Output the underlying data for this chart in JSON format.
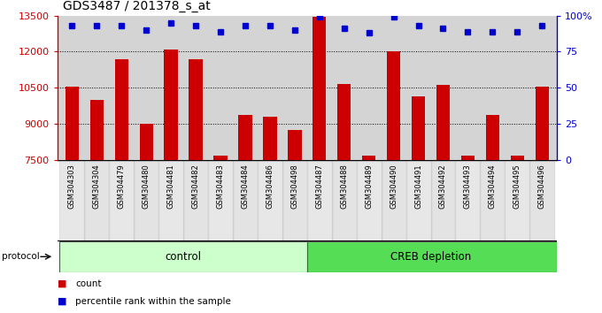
{
  "title": "GDS3487 / 201378_s_at",
  "samples": [
    "GSM304303",
    "GSM304304",
    "GSM304479",
    "GSM304480",
    "GSM304481",
    "GSM304482",
    "GSM304483",
    "GSM304484",
    "GSM304486",
    "GSM304498",
    "GSM304487",
    "GSM304488",
    "GSM304489",
    "GSM304490",
    "GSM304491",
    "GSM304492",
    "GSM304493",
    "GSM304494",
    "GSM304495",
    "GSM304496"
  ],
  "counts": [
    10550,
    10000,
    11700,
    9000,
    12100,
    11700,
    7650,
    9350,
    9300,
    8750,
    13450,
    10650,
    7650,
    12000,
    10150,
    10600,
    7650,
    9350,
    7650,
    10550
  ],
  "percentile": [
    93,
    93,
    93,
    90,
    95,
    93,
    89,
    93,
    93,
    90,
    99,
    91,
    88,
    99,
    93,
    91,
    89,
    89,
    89,
    93
  ],
  "bar_color": "#cc0000",
  "dot_color": "#0000cc",
  "ylim_left": [
    7500,
    13500
  ],
  "ylim_right": [
    0,
    100
  ],
  "yticks_left": [
    7500,
    9000,
    10500,
    12000,
    13500
  ],
  "yticks_right": [
    0,
    25,
    50,
    75,
    100
  ],
  "grid_values": [
    9000,
    10500,
    12000
  ],
  "control_label": "control",
  "creb_label": "CREB depletion",
  "protocol_label": "protocol",
  "legend_count": "count",
  "legend_percentile": "percentile rank within the sample",
  "control_count": 10,
  "sample_bg": "#d4d4d4",
  "control_bg": "#ccffcc",
  "creb_bg": "#55dd55"
}
